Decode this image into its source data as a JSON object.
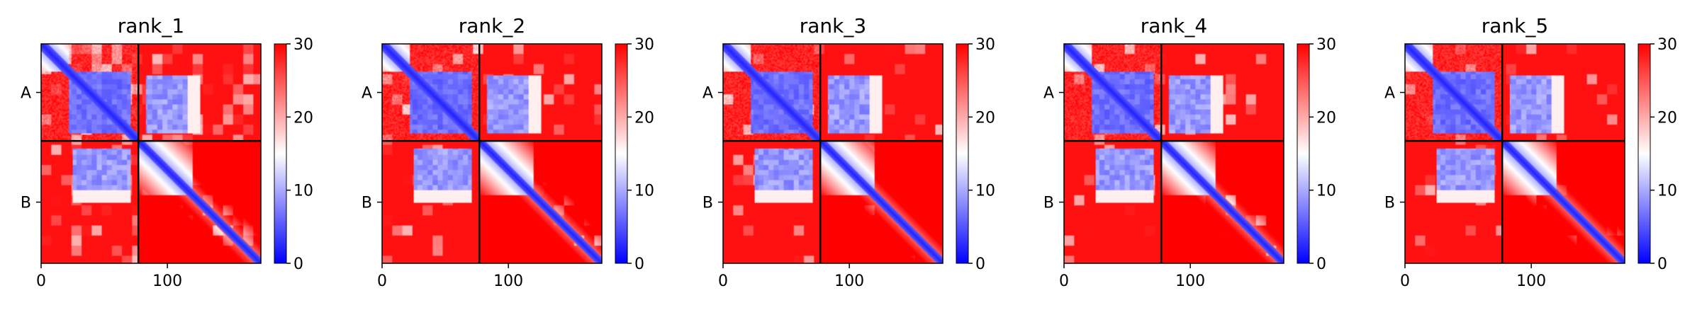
{
  "figure": {
    "colormap": "bwr",
    "colorbar_colors": {
      "low": "#0000ff",
      "mid": "#ffffff",
      "high": "#ff0000"
    }
  },
  "chart_data": [
    {
      "type": "heatmap",
      "title": "rank_1",
      "x_ticks": [
        0,
        100
      ],
      "xlim": [
        0,
        174
      ],
      "ylim": [
        0,
        174
      ],
      "chain_boundary": 77,
      "y_tick_labels": [
        "A",
        "B"
      ],
      "colorbar": {
        "range": [
          0,
          30
        ],
        "ticks": [
          0,
          10,
          20,
          30
        ]
      },
      "noise_level": 0.35
    },
    {
      "type": "heatmap",
      "title": "rank_2",
      "x_ticks": [
        0,
        100
      ],
      "xlim": [
        0,
        174
      ],
      "ylim": [
        0,
        174
      ],
      "chain_boundary": 77,
      "y_tick_labels": [
        "A",
        "B"
      ],
      "colorbar": {
        "range": [
          0,
          30
        ],
        "ticks": [
          0,
          10,
          20,
          30
        ]
      },
      "noise_level": 0.12
    },
    {
      "type": "heatmap",
      "title": "rank_3",
      "x_ticks": [
        0,
        100
      ],
      "xlim": [
        0,
        174
      ],
      "ylim": [
        0,
        174
      ],
      "chain_boundary": 77,
      "y_tick_labels": [
        "A",
        "B"
      ],
      "colorbar": {
        "range": [
          0,
          30
        ],
        "ticks": [
          0,
          10,
          20,
          30
        ]
      },
      "noise_level": 0.1
    },
    {
      "type": "heatmap",
      "title": "rank_4",
      "x_ticks": [
        0,
        100
      ],
      "xlim": [
        0,
        174
      ],
      "ylim": [
        0,
        174
      ],
      "chain_boundary": 77,
      "y_tick_labels": [
        "A",
        "B"
      ],
      "colorbar": {
        "range": [
          0,
          30
        ],
        "ticks": [
          0,
          10,
          20,
          30
        ]
      },
      "noise_level": 0.1
    },
    {
      "type": "heatmap",
      "title": "rank_5",
      "x_ticks": [
        0,
        100
      ],
      "xlim": [
        0,
        174
      ],
      "ylim": [
        0,
        174
      ],
      "chain_boundary": 77,
      "y_tick_labels": [
        "A",
        "B"
      ],
      "colorbar": {
        "range": [
          0,
          30
        ],
        "ticks": [
          0,
          10,
          20,
          30
        ]
      },
      "noise_level": 0.1
    }
  ]
}
